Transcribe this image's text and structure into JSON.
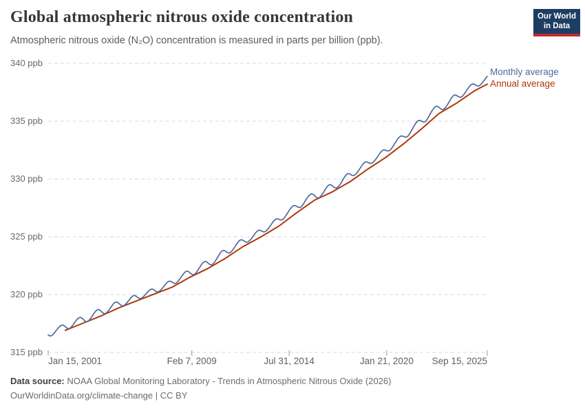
{
  "header": {
    "title": "Global atmospheric nitrous oxide concentration",
    "subtitle": "Atmospheric nitrous oxide (N₂O) concentration is measured in parts per billion (ppb).",
    "logo": {
      "line1": "Our World",
      "line2": "in Data",
      "bg_color": "#1d3d63",
      "accent_color": "#c5292e"
    }
  },
  "chart_data": {
    "type": "line",
    "title": "Global atmospheric nitrous oxide concentration",
    "unit": "ppb",
    "grid": "horizontal dashed gridlines, no plot border",
    "legend_position": "labels at right end of lines",
    "y_axis": {
      "range": [
        315,
        340
      ],
      "tick_values": [
        315,
        320,
        325,
        330,
        335,
        340
      ],
      "tick_suffix": " ppb",
      "grid_color": "#d8d8d8"
    },
    "x_axis": {
      "range": [
        2001.04,
        2025.71
      ],
      "tick_color": "#9a9a9a",
      "ticks": [
        {
          "t": 2001.04,
          "label": "Jan 15, 2001",
          "align": "start"
        },
        {
          "t": 2009.11,
          "label": "Feb 7, 2009",
          "align": "middle"
        },
        {
          "t": 2014.58,
          "label": "Jul 31, 2014",
          "align": "middle"
        },
        {
          "t": 2020.06,
          "label": "Jan 21, 2020",
          "align": "middle"
        },
        {
          "t": 2025.71,
          "label": "Sep 15, 2025",
          "align": "end"
        }
      ]
    },
    "series": [
      {
        "name": "Monthly average",
        "color": "#4C6A9C",
        "kind": "monthly",
        "description": "annual trend plus seasonal oscillation, from ~316.4 ppb in Jan 2001 to ~338.9 ppb in Sep 2025",
        "derivation": {
          "start": {
            "t": 2001.04,
            "value": 316.55
          },
          "end": {
            "t": 2025.71,
            "value": 338.7
          },
          "anchor_offset_years": 0.5,
          "seasonal_amplitude_ppb": 0.27,
          "seasonal_peak_year_fraction": 0.78,
          "texture_amplitude_ppb": 0.05
        }
      },
      {
        "name": "Annual average",
        "color": "#B13507",
        "kind": "annual",
        "plotted_at": "year_end",
        "years": [
          2001,
          2002,
          2003,
          2004,
          2005,
          2006,
          2007,
          2008,
          2009,
          2010,
          2011,
          2012,
          2013,
          2014,
          2015,
          2016,
          2017,
          2018,
          2019,
          2020,
          2021,
          2022,
          2023,
          2024
        ],
        "values": [
          316.91,
          317.53,
          318.15,
          318.85,
          319.45,
          320.05,
          320.64,
          321.5,
          322.25,
          323.14,
          324.16,
          325.0,
          325.92,
          327.08,
          328.16,
          328.88,
          329.76,
          330.86,
          331.86,
          333.03,
          334.31,
          335.66,
          336.57,
          337.63
        ],
        "final_point": {
          "t": 2025.71,
          "value": 338.2
        }
      }
    ]
  },
  "footer": {
    "source_label": "Data source:",
    "source_text": " NOAA Global Monitoring Laboratory - Trends in Atmospheric Nitrous Oxide (2026)",
    "license_line": "OurWorldinData.org/climate-change | CC BY"
  }
}
